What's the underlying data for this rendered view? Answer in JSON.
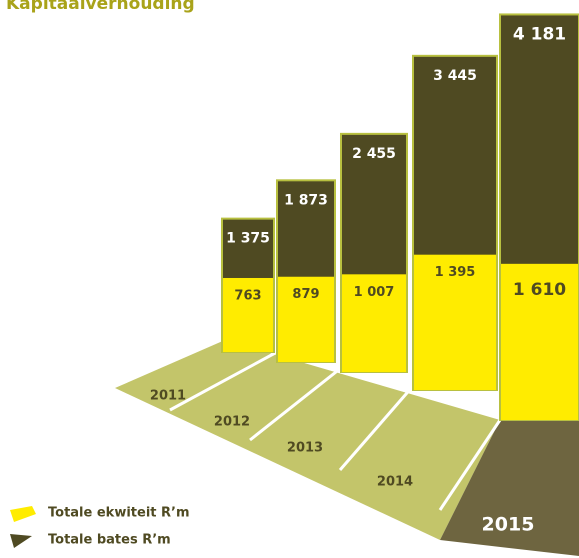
{
  "chart_data": {
    "type": "bar",
    "title": "Kapitaalverhouding",
    "categories": [
      "2011",
      "2012",
      "2013",
      "2014",
      "2015"
    ],
    "series": [
      {
        "name": "Totale ekwiteit R’m",
        "color": "#ffec00",
        "values": [
          763,
          879,
          1007,
          1395,
          1610
        ],
        "value_labels": [
          "763",
          "879",
          "1 007",
          "1 395",
          "1 610"
        ]
      },
      {
        "name": "Totale bates R’m",
        "color": "#4f4a22",
        "values": [
          1375,
          1873,
          2455,
          3445,
          4181
        ],
        "value_labels": [
          "1 375",
          "1 873",
          "2 455",
          "3 445",
          "4 181"
        ]
      }
    ]
  }
}
